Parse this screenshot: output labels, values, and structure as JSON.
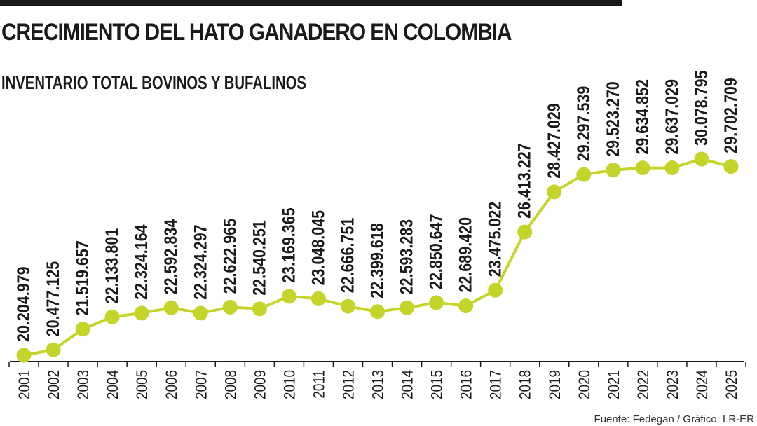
{
  "title": "CRECIMIENTO DEL HATO GANADERO EN COLOMBIA",
  "subtitle": "INVENTARIO TOTAL BOVINOS Y BUFALINOS",
  "source": "Fuente: Fedegan / Gráfico: LR-ER",
  "colors": {
    "line": "#c5d42b",
    "text": "#1a1a1a"
  },
  "chart_data": {
    "type": "line",
    "title": "CRECIMIENTO DEL HATO GANADERO EN COLOMBIA",
    "subtitle": "INVENTARIO TOTAL BOVINOS Y BUFALINOS",
    "xlabel": "",
    "ylabel": "",
    "grid": false,
    "categories": [
      "2001",
      "2002",
      "2003",
      "2004",
      "2005",
      "2006",
      "2007",
      "2008",
      "2009",
      "2010",
      "2011",
      "2012",
      "2013",
      "2014",
      "2015",
      "2016",
      "2017",
      "2018",
      "2019",
      "2020",
      "2021",
      "2022",
      "2023",
      "2024",
      "2025"
    ],
    "values": [
      20204979,
      20477125,
      21519657,
      22133801,
      22324164,
      22592834,
      22324297,
      22622965,
      22540251,
      23169365,
      23048045,
      22666751,
      22399618,
      22593283,
      22850647,
      22689420,
      23475022,
      26413227,
      28427029,
      29297539,
      29523270,
      29634852,
      29637029,
      30078795,
      29702709
    ],
    "labels": [
      "20.204.979",
      "20.477.125",
      "21.519.657",
      "22.133.801",
      "22.324.164",
      "22.592.834",
      "22.324.297",
      "22.622.965",
      "22.540.251",
      "23.169.365",
      "23.048.045",
      "22.666.751",
      "22.399.618",
      "22.593.283",
      "22.850.647",
      "22.689.420",
      "23.475.022",
      "26.413.227",
      "28.427.029",
      "29.297.539",
      "29.523.270",
      "29.634.852",
      "29.637.029",
      "30.078.795",
      "29.702.709"
    ],
    "ylim": [
      20204979,
      30078795
    ]
  }
}
